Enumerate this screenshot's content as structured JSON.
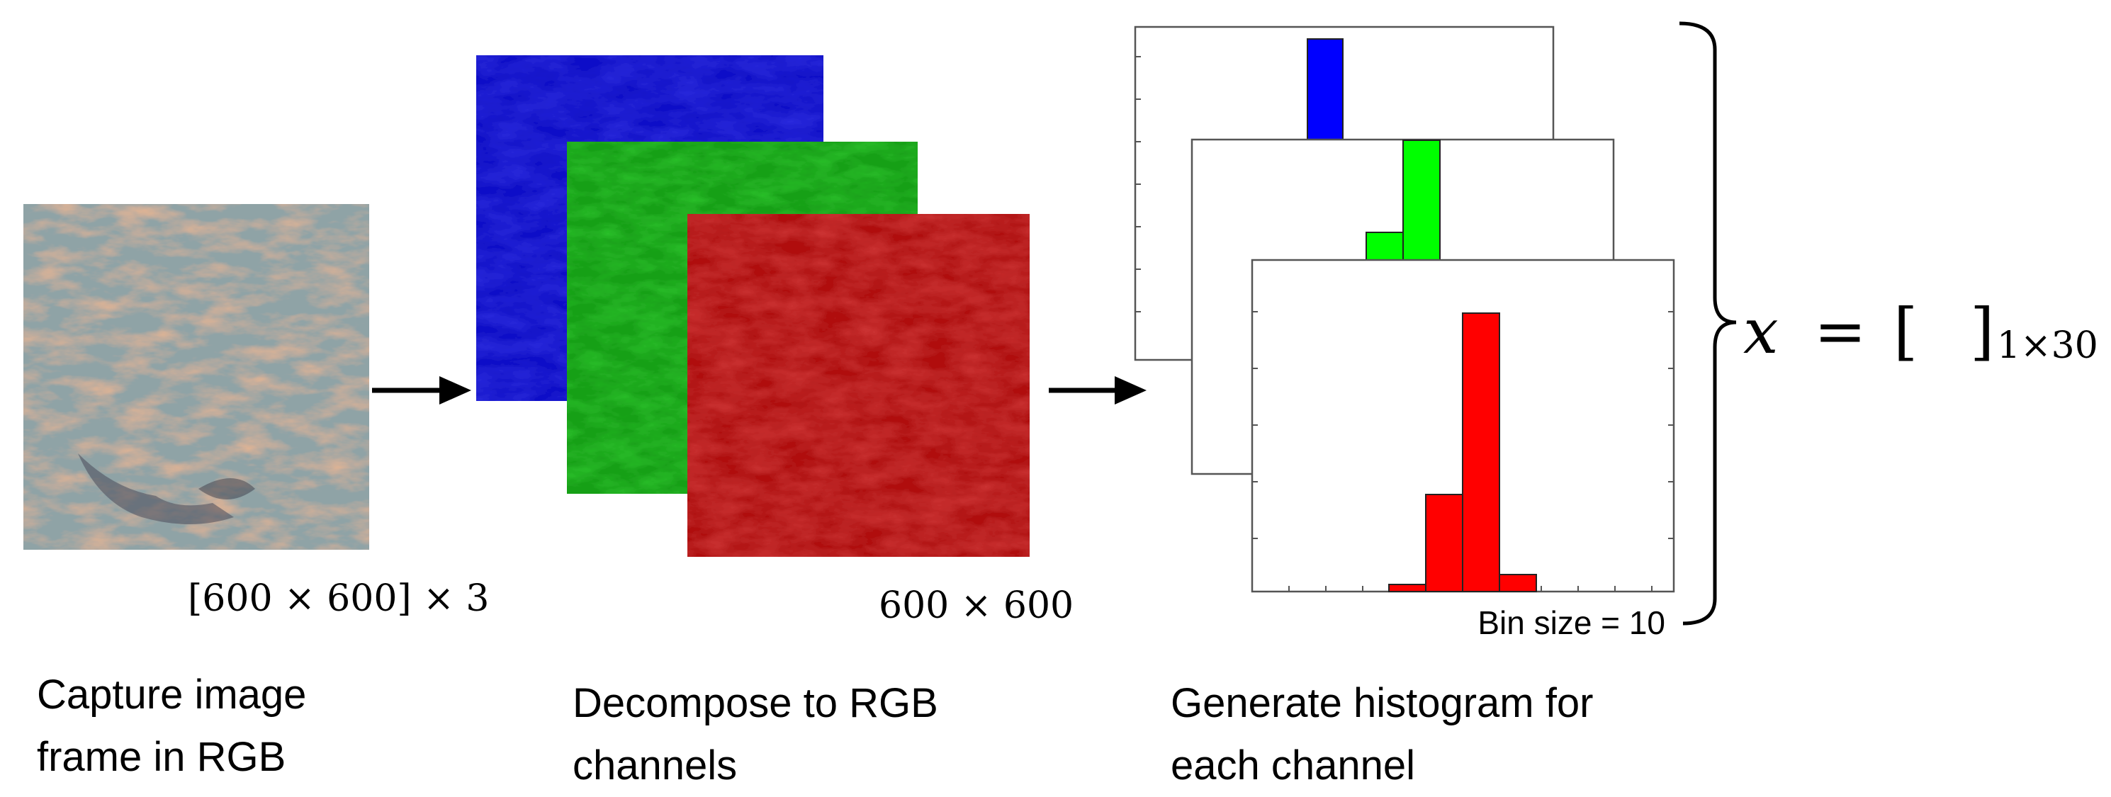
{
  "input_image": {
    "dimension_label": "[600 × 600] × 3",
    "caption_line1": "Capture image",
    "caption_line2": "frame in RGB"
  },
  "channels": {
    "dimension_label": "600 × 600",
    "caption_line1": "Decompose to RGB",
    "caption_line2": "channels",
    "colors": {
      "blue": "#1010c8",
      "green": "#17a017",
      "red": "#b01010"
    }
  },
  "histograms": {
    "bin_label": "Bin size = 10",
    "caption_line1": "Generate histogram for",
    "caption_line2": "each channel",
    "colors": {
      "blue": "#0000ff",
      "green": "#00ff00",
      "red": "#ff0000"
    },
    "bins": {
      "blue": [
        0,
        0,
        0,
        0,
        1.0,
        0,
        0,
        0,
        0,
        0
      ],
      "green": [
        0,
        0,
        0,
        0,
        0.33,
        1.0,
        0,
        0,
        0,
        0
      ],
      "red": [
        0,
        0,
        0,
        0.02,
        0.35,
        1.0,
        0.06,
        0,
        0,
        0
      ]
    }
  },
  "feature_vector": {
    "lhs": "x",
    "equals": "=",
    "bracket_open": "[",
    "bracket_close": "]",
    "subscript": "1×30"
  },
  "arrow_icon": "right-arrow-icon",
  "brace_icon": "right-curly-brace-icon"
}
